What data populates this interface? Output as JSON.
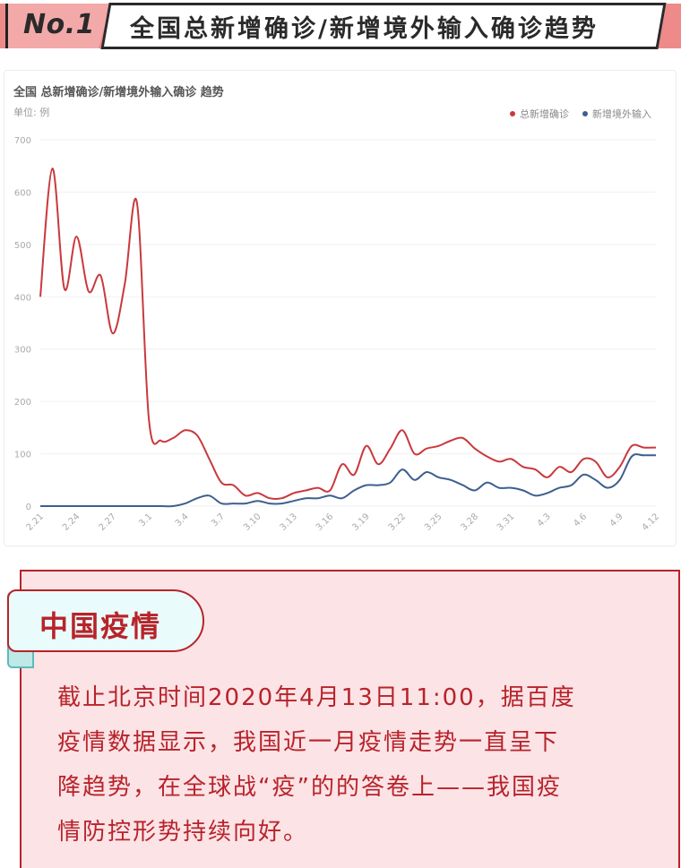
{
  "header": {
    "badge": "No.1",
    "title": "全国总新增确诊/新增境外输入确诊趋势"
  },
  "colors": {
    "series_total": "#c9393d",
    "series_imported": "#3d5f8e",
    "banner": "#ee8a8a",
    "accent_red": "#b8232a",
    "info_bg": "#fbe3e6",
    "tab_bg": "#e9fbfa"
  },
  "chart_data": {
    "type": "line",
    "title": "全国 总新增确诊/新增境外输入确诊 趋势",
    "unit_label": "单位: 例",
    "legend_position": "top-right",
    "grid": true,
    "ylim": [
      0,
      700
    ],
    "y_ticks": [
      0,
      100,
      200,
      300,
      400,
      500,
      600,
      700
    ],
    "x_tick_labels": [
      "2.21",
      "2.24",
      "2.27",
      "3.1",
      "3.4",
      "3.7",
      "3.10",
      "3.13",
      "3.16",
      "3.19",
      "3.22",
      "3.25",
      "3.28",
      "3.31",
      "4.3",
      "4.6",
      "4.9",
      "4.12"
    ],
    "x": [
      "2.21",
      "2.22",
      "2.23",
      "2.24",
      "2.25",
      "2.26",
      "2.27",
      "2.28",
      "2.29",
      "3.1",
      "3.2",
      "3.3",
      "3.4",
      "3.5",
      "3.6",
      "3.7",
      "3.8",
      "3.9",
      "3.10",
      "3.11",
      "3.12",
      "3.13",
      "3.14",
      "3.15",
      "3.16",
      "3.17",
      "3.18",
      "3.19",
      "3.20",
      "3.21",
      "3.22",
      "3.23",
      "3.24",
      "3.25",
      "3.26",
      "3.27",
      "3.28",
      "3.29",
      "3.30",
      "3.31",
      "4.1",
      "4.2",
      "4.3",
      "4.4",
      "4.5",
      "4.6",
      "4.7",
      "4.8",
      "4.9",
      "4.10",
      "4.11",
      "4.12"
    ],
    "series": [
      {
        "name": "总新增确诊",
        "values": [
          400,
          645,
          415,
          515,
          410,
          440,
          330,
          425,
          580,
          165,
          125,
          130,
          145,
          135,
          90,
          45,
          40,
          20,
          25,
          15,
          15,
          25,
          30,
          35,
          30,
          80,
          60,
          115,
          80,
          110,
          145,
          100,
          110,
          115,
          125,
          130,
          110,
          95,
          85,
          90,
          75,
          70,
          55,
          75,
          65,
          90,
          85,
          55,
          75,
          115,
          112,
          112
        ]
      },
      {
        "name": "新增境外输入",
        "values": [
          0,
          0,
          0,
          0,
          0,
          0,
          0,
          0,
          0,
          0,
          0,
          0,
          5,
          15,
          20,
          5,
          5,
          5,
          10,
          5,
          5,
          10,
          15,
          15,
          20,
          15,
          30,
          40,
          40,
          45,
          70,
          50,
          65,
          55,
          50,
          40,
          30,
          45,
          35,
          35,
          30,
          20,
          25,
          35,
          40,
          60,
          50,
          35,
          50,
          95,
          97,
          97
        ]
      }
    ]
  },
  "info": {
    "tab_title": "中国疫情",
    "lines": [
      "截止北京时间2020年4月13日11:00，据百度",
      "疫情数据显示，我国近一月疫情走势一直呈下",
      "降趋势，在全球战“疫”的的答卷上——我国疫",
      "情防控形势持续向好。"
    ]
  }
}
